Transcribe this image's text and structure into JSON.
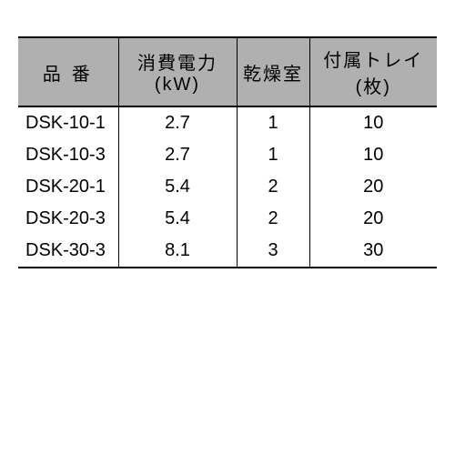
{
  "table": {
    "columns": [
      {
        "label": "品番",
        "key": "model"
      },
      {
        "label": "消費電力(kW)",
        "key": "power"
      },
      {
        "label": "乾燥室",
        "key": "chamber"
      },
      {
        "label": "付属トレイ(枚)",
        "key": "tray"
      }
    ],
    "rows": [
      {
        "model": "DSK-10-1",
        "power": "2.7",
        "chamber": "1",
        "tray": "10"
      },
      {
        "model": "DSK-10-3",
        "power": "2.7",
        "chamber": "1",
        "tray": "10"
      },
      {
        "model": "DSK-20-1",
        "power": "5.4",
        "chamber": "2",
        "tray": "20"
      },
      {
        "model": "DSK-20-3",
        "power": "5.4",
        "chamber": "2",
        "tray": "20"
      },
      {
        "model": "DSK-30-3",
        "power": "8.1",
        "chamber": "3",
        "tray": "30"
      }
    ],
    "styling": {
      "header_background": "#b0b0b0",
      "border_color": "#000000",
      "text_color": "#000000",
      "background_color": "#ffffff",
      "font_size": 20,
      "outer_border_width": 2,
      "inner_border_width": 1
    }
  }
}
